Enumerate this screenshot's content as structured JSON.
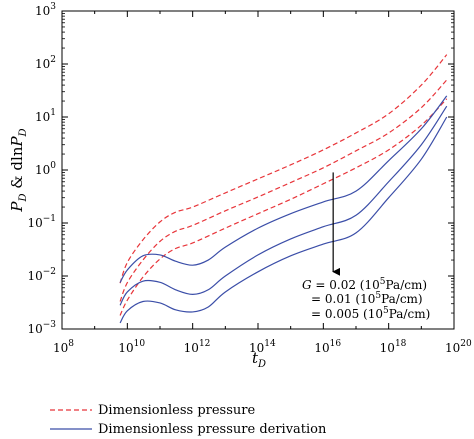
{
  "chart_data": {
    "type": "line",
    "xscale": "log",
    "yscale": "log",
    "xlim": [
      100000000.0,
      1e+20
    ],
    "ylim": [
      0.001,
      1000
    ],
    "grid": false,
    "legend_position": "bottom",
    "xlabel_base": "t",
    "xlabel_sub": "D",
    "ylabel_a": "P",
    "ylabel_a_sub": "D",
    "ylabel_mid": " & dln",
    "ylabel_b": "P",
    "ylabel_b_sub": "D",
    "x_ticks": [
      {
        "value": 100000000.0,
        "base": "10",
        "exp": "8"
      },
      {
        "value": 10000000000.0,
        "base": "10",
        "exp": "10"
      },
      {
        "value": 1000000000000.0,
        "base": "10",
        "exp": "12"
      },
      {
        "value": 100000000000000.0,
        "base": "10",
        "exp": "14"
      },
      {
        "value": 1e+16,
        "base": "10",
        "exp": "16"
      },
      {
        "value": 1e+18,
        "base": "10",
        "exp": "18"
      },
      {
        "value": 1e+20,
        "base": "10",
        "exp": "20"
      }
    ],
    "y_ticks": [
      {
        "value": 0.001,
        "base": "10",
        "exp": "−3"
      },
      {
        "value": 0.01,
        "base": "10",
        "exp": "−2"
      },
      {
        "value": 0.1,
        "base": "10",
        "exp": "−1"
      },
      {
        "value": 1,
        "base": "10",
        "exp": "0"
      },
      {
        "value": 10,
        "base": "10",
        "exp": "1"
      },
      {
        "value": 100,
        "base": "10",
        "exp": "2"
      },
      {
        "value": 1000,
        "base": "10",
        "exp": "3"
      }
    ],
    "colors": {
      "pressure": "#e8353a",
      "derivation": "#3b4ea8"
    },
    "series": [
      {
        "group": "pressure",
        "G": "0.02",
        "x": [
          6000000000.0,
          10000000000.0,
          30000000000.0,
          100000000000.0,
          300000000000.0,
          1000000000000.0,
          10000000000000.0,
          100000000000000.0,
          1000000000000000.0,
          1e+16,
          1e+17,
          1e+18,
          1e+19,
          6e+19
        ],
        "y": [
          0.0073,
          0.018,
          0.048,
          0.105,
          0.16,
          0.2,
          0.37,
          0.68,
          1.25,
          2.4,
          5.0,
          11.5,
          40,
          150
        ]
      },
      {
        "group": "pressure",
        "G": "0.01",
        "x": [
          6000000000.0,
          10000000000.0,
          30000000000.0,
          100000000000.0,
          300000000000.0,
          1000000000000.0,
          10000000000000.0,
          100000000000000.0,
          1000000000000000.0,
          1e+16,
          1e+17,
          1e+18,
          1e+19,
          6e+19
        ],
        "y": [
          0.0033,
          0.0075,
          0.02,
          0.045,
          0.07,
          0.09,
          0.17,
          0.31,
          0.58,
          1.1,
          2.3,
          5.0,
          15,
          50
        ]
      },
      {
        "group": "pressure",
        "G": "0.005",
        "x": [
          6000000000.0,
          10000000000.0,
          30000000000.0,
          100000000000.0,
          300000000000.0,
          1000000000000.0,
          10000000000000.0,
          100000000000000.0,
          1000000000000000.0,
          1e+16,
          1e+17,
          1e+18,
          1e+19,
          6e+19
        ],
        "y": [
          0.0018,
          0.0035,
          0.0095,
          0.021,
          0.033,
          0.042,
          0.08,
          0.15,
          0.28,
          0.55,
          1.1,
          2.4,
          7,
          22
        ]
      },
      {
        "group": "derivation",
        "G": "0.02",
        "x": [
          6000000000.0,
          10000000000.0,
          30000000000.0,
          100000000000.0,
          300000000000.0,
          1000000000000.0,
          3000000000000.0,
          10000000000000.0,
          100000000000000.0,
          1000000000000000.0,
          1e+16,
          1e+17,
          1e+18,
          1e+19,
          6e+19
        ],
        "y": [
          0.0075,
          0.013,
          0.024,
          0.025,
          0.019,
          0.016,
          0.02,
          0.035,
          0.08,
          0.15,
          0.25,
          0.4,
          1.5,
          6,
          25
        ]
      },
      {
        "group": "derivation",
        "G": "0.01",
        "x": [
          6000000000.0,
          10000000000.0,
          30000000000.0,
          100000000000.0,
          300000000000.0,
          1000000000000.0,
          3000000000000.0,
          10000000000000.0,
          100000000000000.0,
          1000000000000000.0,
          1e+16,
          1e+17,
          1e+18,
          1e+19,
          6e+19
        ],
        "y": [
          0.0028,
          0.005,
          0.008,
          0.0076,
          0.0055,
          0.0045,
          0.0055,
          0.01,
          0.025,
          0.05,
          0.085,
          0.14,
          0.6,
          3,
          16
        ]
      },
      {
        "group": "derivation",
        "G": "0.005",
        "x": [
          6000000000.0,
          10000000000.0,
          30000000000.0,
          100000000000.0,
          300000000000.0,
          1000000000000.0,
          3000000000000.0,
          10000000000000.0,
          100000000000000.0,
          1000000000000000.0,
          1e+16,
          1e+17,
          1e+18,
          1e+19,
          6e+19
        ],
        "y": [
          0.0013,
          0.0022,
          0.0033,
          0.0031,
          0.0023,
          0.0021,
          0.0026,
          0.005,
          0.012,
          0.024,
          0.04,
          0.065,
          0.3,
          1.6,
          10
        ]
      }
    ],
    "annotation": {
      "lines": [
        {
          "prefix": "G",
          "text": " = 0.02 (10",
          "sup": "5",
          "unit": "Pa/cm)"
        },
        {
          "prefix": "",
          "text": "= 0.01 (10",
          "sup": "5",
          "unit": "Pa/cm)"
        },
        {
          "prefix": "",
          "text": "= 0.005 (10",
          "sup": "5",
          "unit": "Pa/cm)"
        }
      ],
      "arrow_x": 2e+16,
      "arrow_from_y": 0.9,
      "arrow_to_y": 0.012
    },
    "legend": [
      {
        "group": "pressure",
        "label": "Dimensionless pressure"
      },
      {
        "group": "derivation",
        "label": "Dimensionless pressure derivation"
      }
    ]
  }
}
